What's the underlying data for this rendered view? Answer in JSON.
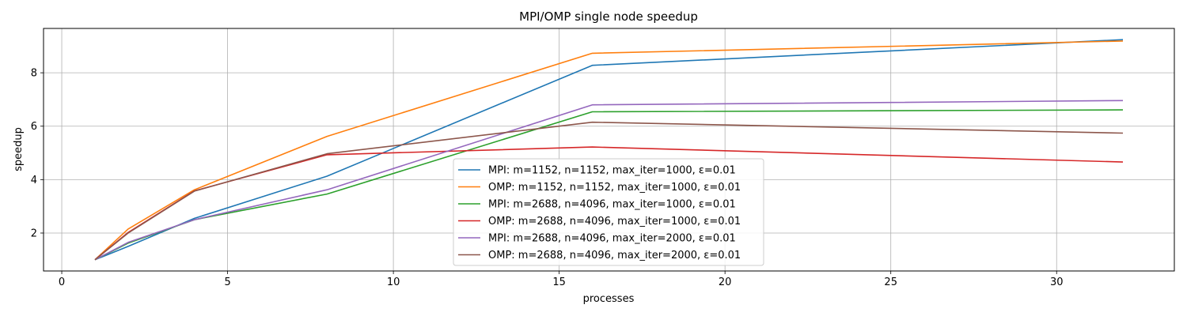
{
  "chart_data": {
    "type": "line",
    "title": "MPI/OMP single node speedup",
    "xlabel": "processes",
    "ylabel": "speedup",
    "x": [
      1,
      2,
      4,
      8,
      16,
      32
    ],
    "xlim": [
      -0.55,
      33.55
    ],
    "ylim": [
      0.58,
      9.66
    ],
    "xticks": [
      0,
      5,
      10,
      15,
      20,
      25,
      30
    ],
    "yticks": [
      2,
      4,
      6,
      8
    ],
    "grid": true,
    "legend_position": "lower center",
    "series": [
      {
        "name": "MPI: m=1152, n=1152, max_iter=1000, ε=0.01",
        "color": "#1f77b4",
        "values": [
          1.0,
          1.5,
          2.55,
          4.13,
          8.28,
          9.24
        ]
      },
      {
        "name": "OMP: m=1152, n=1152, max_iter=1000, ε=0.01",
        "color": "#ff7f0e",
        "values": [
          1.0,
          2.15,
          3.62,
          5.62,
          8.73,
          9.19
        ]
      },
      {
        "name": "MPI: m=2688, n=4096, max_iter=1000, ε=0.01",
        "color": "#2ca02c",
        "values": [
          1.0,
          1.62,
          2.5,
          3.46,
          6.54,
          6.61
        ]
      },
      {
        "name": "OMP: m=2688, n=4096, max_iter=1000, ε=0.01",
        "color": "#d62728",
        "values": [
          1.0,
          2.02,
          3.58,
          4.93,
          5.22,
          4.66
        ]
      },
      {
        "name": "MPI: m=2688, n=4096, max_iter=2000, ε=0.01",
        "color": "#9467bd",
        "values": [
          1.0,
          1.65,
          2.5,
          3.62,
          6.8,
          6.96
        ]
      },
      {
        "name": "OMP: m=2688, n=4096, max_iter=2000, ε=0.01",
        "color": "#8c564b",
        "values": [
          1.0,
          2.0,
          3.57,
          4.97,
          6.15,
          5.74
        ]
      }
    ]
  }
}
